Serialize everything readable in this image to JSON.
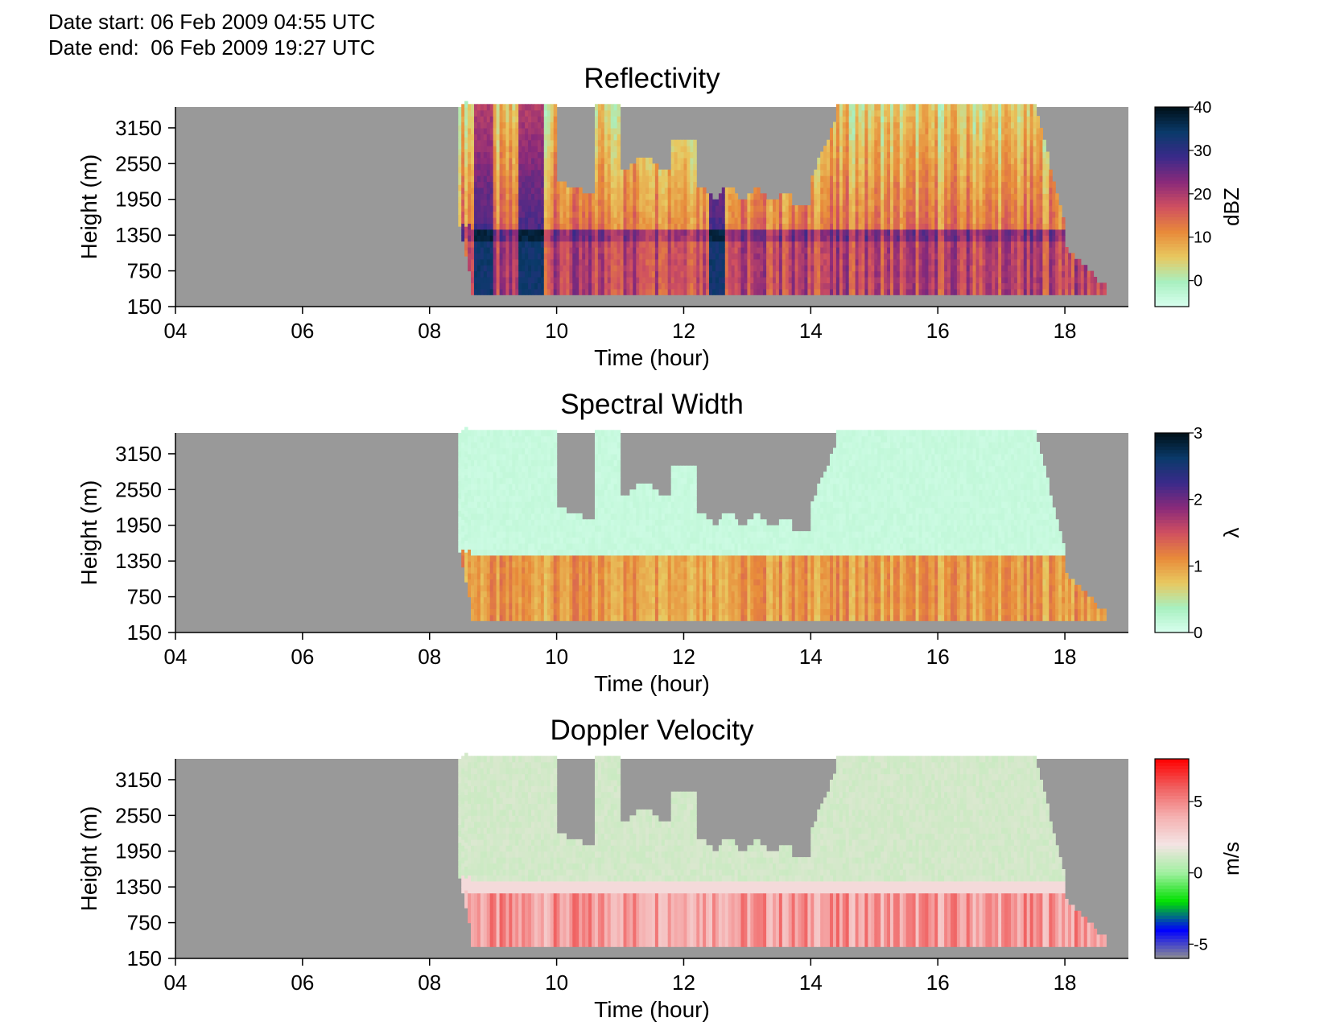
{
  "header": {
    "date_start": "Date start: 06 Feb 2009 04:55 UTC",
    "date_end": "Date end:  06 Feb 2009 19:27 UTC"
  },
  "chart_data": [
    {
      "type": "heatmap",
      "title": "Reflectivity",
      "xlabel": "Time (hour)",
      "ylabel": "Height (m)",
      "xlim": [
        4,
        19
      ],
      "ylim": [
        150,
        3500
      ],
      "x_ticks": [
        "04",
        "06",
        "08",
        "10",
        "12",
        "14",
        "16",
        "18"
      ],
      "y_ticks": [
        "150",
        "750",
        "1350",
        "1950",
        "2550",
        "3150"
      ],
      "colorbar": {
        "label": "dBZ",
        "ticks": [
          "40",
          "30",
          "20",
          "10",
          "0"
        ],
        "range": [
          -6,
          40
        ],
        "colors": [
          "#d9fff0",
          "#a8f0c0",
          "#e8c860",
          "#e88a3a",
          "#d05060",
          "#8a2a7a",
          "#3a2a8a",
          "#0a3a6a",
          "#001018"
        ]
      },
      "echo_extent": {
        "start_hour": 8.65,
        "end_hour": 18.65,
        "base_height_m": 350
      },
      "bright_band_height_m": 1350,
      "approx_values": {
        "max_dBZ": 35,
        "typical_low_level_dBZ": 15,
        "typical_upper_level_dBZ": 3
      }
    },
    {
      "type": "heatmap",
      "title": "Spectral Width",
      "xlabel": "Time (hour)",
      "ylabel": "Height (m)",
      "xlim": [
        4,
        19
      ],
      "ylim": [
        150,
        3500
      ],
      "x_ticks": [
        "04",
        "06",
        "08",
        "10",
        "12",
        "14",
        "16",
        "18"
      ],
      "y_ticks": [
        "150",
        "750",
        "1350",
        "1950",
        "2550",
        "3150"
      ],
      "colorbar": {
        "label": "λ",
        "ticks": [
          "3",
          "2",
          "1",
          "0"
        ],
        "range": [
          0,
          3
        ],
        "colors": [
          "#d9fff0",
          "#a8f0c0",
          "#e8c860",
          "#e88a3a",
          "#d05060",
          "#8a2a7a",
          "#3a2a8a",
          "#0a3a6a",
          "#001018"
        ]
      },
      "approx_values": {
        "below_melting_layer": 0.9,
        "above_melting_layer": 0.1
      }
    },
    {
      "type": "heatmap",
      "title": "Doppler Velocity",
      "xlabel": "Time (hour)",
      "ylabel": "Height (m)",
      "xlim": [
        4,
        19
      ],
      "ylim": [
        150,
        3500
      ],
      "x_ticks": [
        "04",
        "06",
        "08",
        "10",
        "12",
        "14",
        "16",
        "18"
      ],
      "y_ticks": [
        "150",
        "750",
        "1350",
        "1950",
        "2550",
        "3150"
      ],
      "colorbar": {
        "label": "m/s",
        "ticks": [
          "5",
          "0",
          "-5"
        ],
        "range": [
          -6,
          8
        ],
        "colors": [
          "#909090",
          "#0000ff",
          "#00e000",
          "#a0f0a0",
          "#f4e4e4",
          "#f5b0b0",
          "#f06060",
          "#ff0000"
        ]
      },
      "approx_values": {
        "below_melting_layer_ms": 4.5,
        "above_melting_layer_ms": 1.2
      }
    }
  ]
}
